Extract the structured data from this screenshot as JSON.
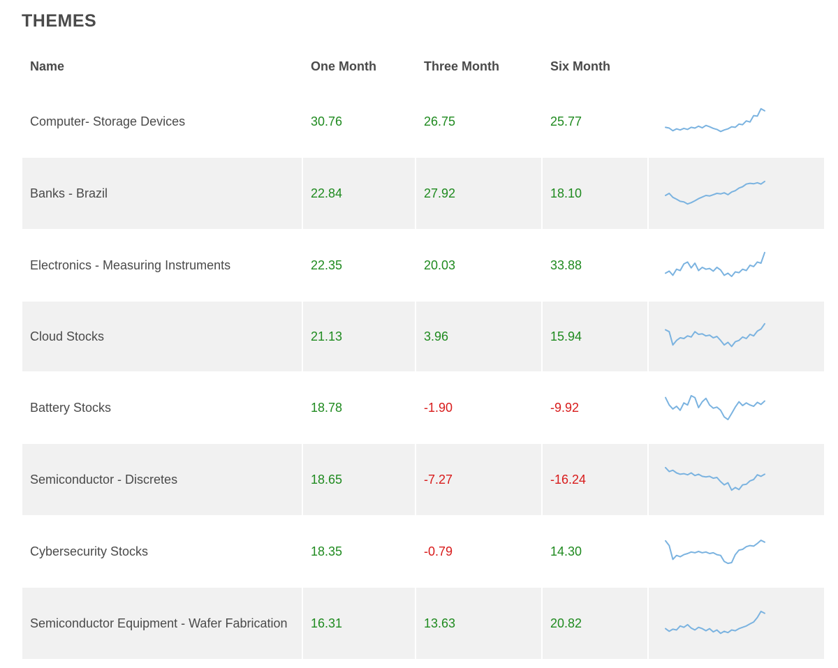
{
  "title": "THEMES",
  "colors": {
    "positive": "#1f8a1f",
    "negative": "#d81b1b",
    "sparkline": "#7bb3e0",
    "stripe": "#f1f1f1"
  },
  "columns": {
    "name": "Name",
    "one_month": "One Month",
    "three_month": "Three Month",
    "six_month": "Six Month"
  },
  "rows": [
    {
      "name": "Computer- Storage Devices",
      "one_month": "30.76",
      "three_month": "26.75",
      "six_month": "25.77",
      "spark": [
        0.28,
        0.25,
        0.15,
        0.22,
        0.18,
        0.24,
        0.2,
        0.28,
        0.25,
        0.32,
        0.26,
        0.35,
        0.3,
        0.24,
        0.2,
        0.12,
        0.18,
        0.22,
        0.3,
        0.28,
        0.4,
        0.38,
        0.52,
        0.48,
        0.72,
        0.7,
        0.98,
        0.9
      ]
    },
    {
      "name": "Banks - Brazil",
      "one_month": "22.84",
      "three_month": "27.92",
      "six_month": "18.10",
      "spark": [
        0.42,
        0.5,
        0.35,
        0.28,
        0.2,
        0.18,
        0.1,
        0.15,
        0.22,
        0.3,
        0.36,
        0.42,
        0.4,
        0.45,
        0.5,
        0.48,
        0.52,
        0.45,
        0.55,
        0.6,
        0.7,
        0.75,
        0.85,
        0.88,
        0.86,
        0.9,
        0.85,
        0.95
      ]
    },
    {
      "name": "Electronics - Measuring Instruments",
      "one_month": "22.35",
      "three_month": "20.03",
      "six_month": "33.88",
      "spark": [
        0.2,
        0.28,
        0.12,
        0.35,
        0.3,
        0.55,
        0.62,
        0.4,
        0.58,
        0.3,
        0.42,
        0.35,
        0.38,
        0.28,
        0.42,
        0.32,
        0.12,
        0.2,
        0.08,
        0.25,
        0.22,
        0.35,
        0.3,
        0.5,
        0.45,
        0.62,
        0.58,
        0.98
      ]
    },
    {
      "name": "Cloud Stocks",
      "one_month": "21.13",
      "three_month": "3.96",
      "six_month": "15.94",
      "spark": [
        0.75,
        0.68,
        0.18,
        0.35,
        0.45,
        0.42,
        0.52,
        0.48,
        0.68,
        0.58,
        0.6,
        0.52,
        0.55,
        0.45,
        0.5,
        0.35,
        0.18,
        0.28,
        0.12,
        0.3,
        0.35,
        0.48,
        0.42,
        0.58,
        0.52,
        0.7,
        0.78,
        0.98
      ]
    },
    {
      "name": "Battery Stocks",
      "one_month": "18.78",
      "three_month": "-1.90",
      "six_month": "-9.92",
      "spark": [
        0.88,
        0.6,
        0.45,
        0.55,
        0.4,
        0.68,
        0.6,
        0.95,
        0.88,
        0.5,
        0.72,
        0.85,
        0.6,
        0.48,
        0.52,
        0.4,
        0.15,
        0.05,
        0.28,
        0.52,
        0.72,
        0.58,
        0.68,
        0.6,
        0.55,
        0.7,
        0.62,
        0.75
      ]
    },
    {
      "name": "Semiconductor - Discretes",
      "one_month": "18.65",
      "three_month": "-7.27",
      "six_month": "-16.24",
      "spark": [
        0.95,
        0.8,
        0.85,
        0.75,
        0.7,
        0.72,
        0.68,
        0.75,
        0.65,
        0.7,
        0.62,
        0.6,
        0.62,
        0.55,
        0.58,
        0.42,
        0.3,
        0.38,
        0.1,
        0.2,
        0.12,
        0.3,
        0.32,
        0.45,
        0.5,
        0.68,
        0.62,
        0.7
      ]
    },
    {
      "name": "Cybersecurity Stocks",
      "one_month": "18.35",
      "three_month": "-0.79",
      "six_month": "14.30",
      "spark": [
        0.9,
        0.72,
        0.2,
        0.35,
        0.3,
        0.38,
        0.42,
        0.48,
        0.45,
        0.5,
        0.45,
        0.48,
        0.42,
        0.45,
        0.38,
        0.35,
        0.12,
        0.05,
        0.08,
        0.38,
        0.55,
        0.58,
        0.68,
        0.72,
        0.7,
        0.8,
        0.92,
        0.85
      ]
    },
    {
      "name": "Semiconductor Equipment - Wafer Fabrication",
      "one_month": "16.31",
      "three_month": "13.63",
      "six_month": "20.82",
      "spark": [
        0.3,
        0.2,
        0.28,
        0.25,
        0.4,
        0.35,
        0.45,
        0.32,
        0.25,
        0.35,
        0.3,
        0.22,
        0.3,
        0.18,
        0.25,
        0.12,
        0.2,
        0.15,
        0.25,
        0.22,
        0.3,
        0.35,
        0.4,
        0.48,
        0.55,
        0.72,
        0.95,
        0.88
      ]
    }
  ]
}
